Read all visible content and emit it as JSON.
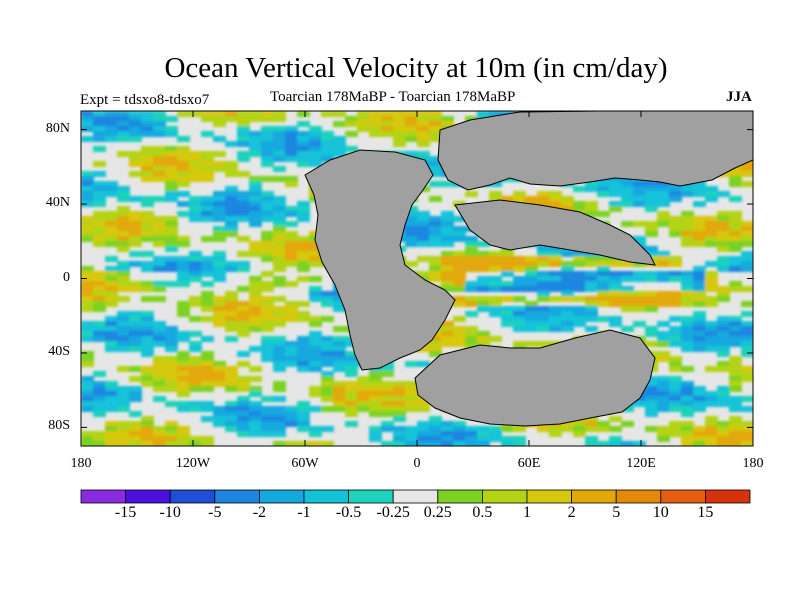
{
  "title": "Ocean Vertical Velocity at 10m (in cm/day)",
  "left_label": "Expt = tdsxo8-tdsxo7",
  "subtitle": "Toarcian 178MaBP - Toarcian 178MaBP",
  "season": "JJA",
  "lat_ticks": [
    {
      "label": "80N",
      "lat": 80
    },
    {
      "label": "40N",
      "lat": 40
    },
    {
      "label": "0",
      "lat": 0
    },
    {
      "label": "40S",
      "lat": -40
    },
    {
      "label": "80S",
      "lat": -80
    }
  ],
  "lon_ticks": [
    {
      "label": "180",
      "lon": -180
    },
    {
      "label": "120W",
      "lon": -120
    },
    {
      "label": "60W",
      "lon": -60
    },
    {
      "label": "0",
      "lon": 0
    },
    {
      "label": "60E",
      "lon": 60
    },
    {
      "label": "120E",
      "lon": 120
    },
    {
      "label": "180",
      "lon": 180
    }
  ],
  "colorbar": {
    "colors": [
      "#8a2be2",
      "#4b10e0",
      "#1f4fd6",
      "#1e86e0",
      "#14a8de",
      "#12c3d8",
      "#1ed2bb",
      "#e6e6e6",
      "#7cd223",
      "#b4d312",
      "#d6c80e",
      "#e2a808",
      "#e48808",
      "#e65e10",
      "#d8320c"
    ],
    "labels": [
      "-15",
      "-10",
      "-5",
      "-2",
      "-1",
      "-0.5",
      "-0.25",
      "0.25",
      "0.5",
      "1",
      "2",
      "5",
      "10",
      "15"
    ]
  },
  "colors": {
    "land": "#a0a0a0",
    "background": "#e6e6e6"
  }
}
